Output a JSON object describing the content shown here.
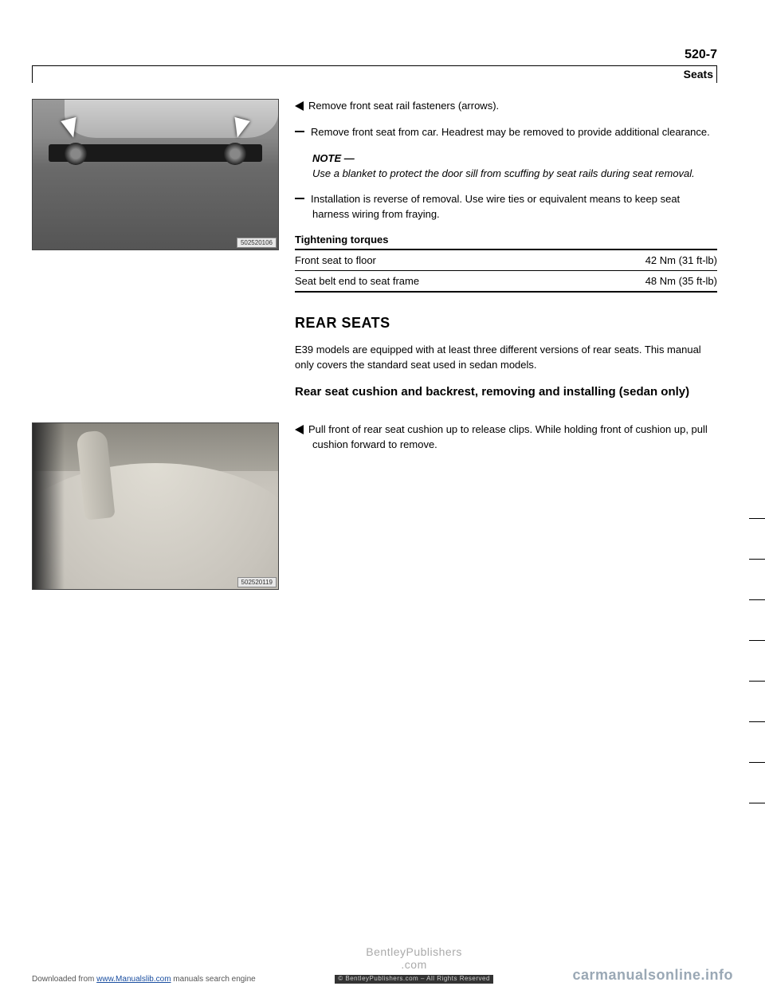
{
  "header": {
    "page_number": "520-7",
    "section_label": "Seats"
  },
  "figures": {
    "top": {
      "badge": "502520106"
    },
    "bottom": {
      "badge": "502520119"
    }
  },
  "steps": {
    "s1": "Remove front seat rail fasteners (arrows).",
    "s2": "Remove front seat from car. Headrest may be removed to provide additional clearance.",
    "note_head": "NOTE —",
    "note_body": "Use a blanket to protect the door sill from scuffing by seat rails during seat removal.",
    "s3": "Installation is reverse of removal. Use wire ties or equivalent means to keep seat harness wiring from fraying."
  },
  "torques": {
    "title": "Tightening torques",
    "rows": [
      {
        "label": "Front seat to floor",
        "value": "42 Nm (31 ft-lb)"
      },
      {
        "label": "Seat belt end to seat frame",
        "value": "48 Nm (35 ft-lb)"
      }
    ]
  },
  "rear": {
    "heading": "REAR SEATS",
    "intro": "E39 models are equipped with at least three different versions of rear seats. This manual only covers the standard seat used in sedan models.",
    "sub": "Rear seat cushion and backrest, removing and installing (sedan only)",
    "step": "Pull front of rear seat cushion up to release clips. While holding front of cushion up, pull cushion forward to remove."
  },
  "footer": {
    "left_pre": "Downloaded from ",
    "left_link": "www.Manualslib.com",
    "left_post": " manuals search engine",
    "center_top": "BentleyPublishers",
    "center_mid": ".com",
    "center_small": "© BentleyPublishers.com – All Rights Reserved",
    "right": "carmanualsonline.info"
  }
}
